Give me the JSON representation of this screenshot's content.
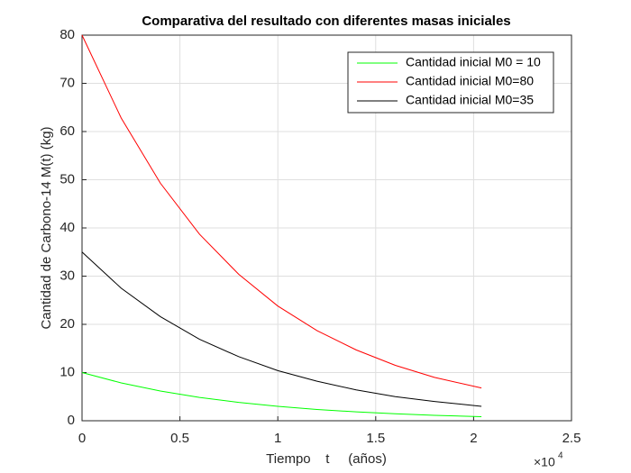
{
  "chart_data": {
    "type": "line",
    "title": "Comparativa del resultado con diferentes masas iniciales",
    "x_label": "Tiempo    t     (años)",
    "y_label": "Cantidad de Carbono-14    M(t)      (kg)",
    "x_multiplier": {
      "base": "×10",
      "exponent": "4"
    },
    "x": [
      0,
      2000,
      4000,
      6000,
      8000,
      10000,
      12000,
      14000,
      16000,
      18000,
      20400
    ],
    "series": [
      {
        "name": "Cantidad inicial M0 = 10",
        "color": "#00ff00",
        "values": [
          10,
          7.85,
          6.16,
          4.84,
          3.8,
          2.98,
          2.34,
          1.84,
          1.44,
          1.13,
          0.85
        ]
      },
      {
        "name": "Cantidad inicial M0=80",
        "color": "#ff0000",
        "values": [
          80,
          62.8,
          49.3,
          38.7,
          30.4,
          23.8,
          18.7,
          14.7,
          11.5,
          9.0,
          6.8
        ]
      },
      {
        "name": "Cantidad inicial M0=35",
        "color": "#000000",
        "values": [
          35,
          27.5,
          21.6,
          16.9,
          13.3,
          10.4,
          8.2,
          6.4,
          5.0,
          4.0,
          3.0
        ]
      }
    ],
    "xlim": [
      0,
      25000
    ],
    "xticks": [
      0,
      {
        "value": 5000,
        "label": "0.5"
      },
      {
        "value": 10000,
        "label": "1"
      },
      {
        "value": 15000,
        "label": "1.5"
      },
      {
        "value": 20000,
        "label": "2"
      },
      {
        "value": 25000,
        "label": "2.5"
      }
    ],
    "ylim": [
      0,
      80
    ],
    "yticks": [
      0,
      10,
      20,
      30,
      40,
      50,
      60,
      70,
      80
    ],
    "grid": true,
    "legend": "upper-right"
  }
}
